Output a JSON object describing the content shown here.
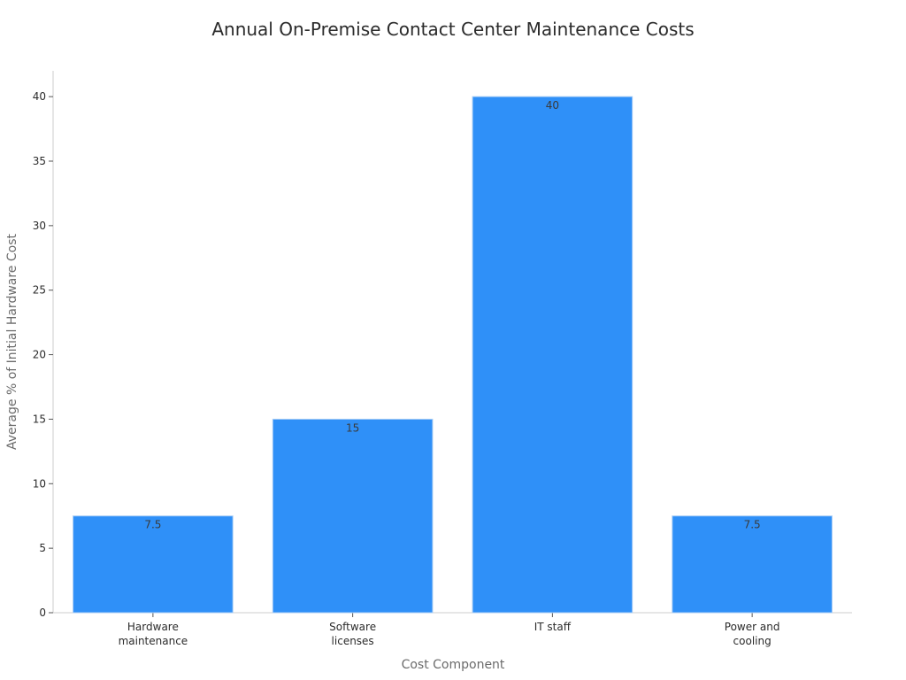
{
  "chart_data": {
    "type": "bar",
    "title": "Annual On-Premise Contact Center Maintenance Costs",
    "xlabel": "Cost Component",
    "ylabel": "Average % of Initial Hardware Cost",
    "categories": [
      [
        "Hardware",
        "maintenance"
      ],
      [
        "Software",
        "licenses"
      ],
      [
        "IT staff"
      ],
      [
        "Power and",
        "cooling"
      ]
    ],
    "values": [
      7.5,
      15,
      40,
      7.5
    ],
    "data_labels": [
      "7.5",
      "15",
      "40",
      "7.5"
    ],
    "ylim": [
      0,
      42
    ],
    "yticks": [
      0,
      5,
      10,
      15,
      20,
      25,
      30,
      35,
      40
    ],
    "grid": false,
    "legend": "none",
    "colors": {
      "bar": "#2f90f8",
      "bar_edge": "#a9cdf5",
      "axis": "#cccccc",
      "tick_text": "#2b2b2b",
      "title_text": "#2b2b2b",
      "axis_title_text": "#6b6b6b",
      "data_label_text": "#3a3a3a"
    }
  }
}
